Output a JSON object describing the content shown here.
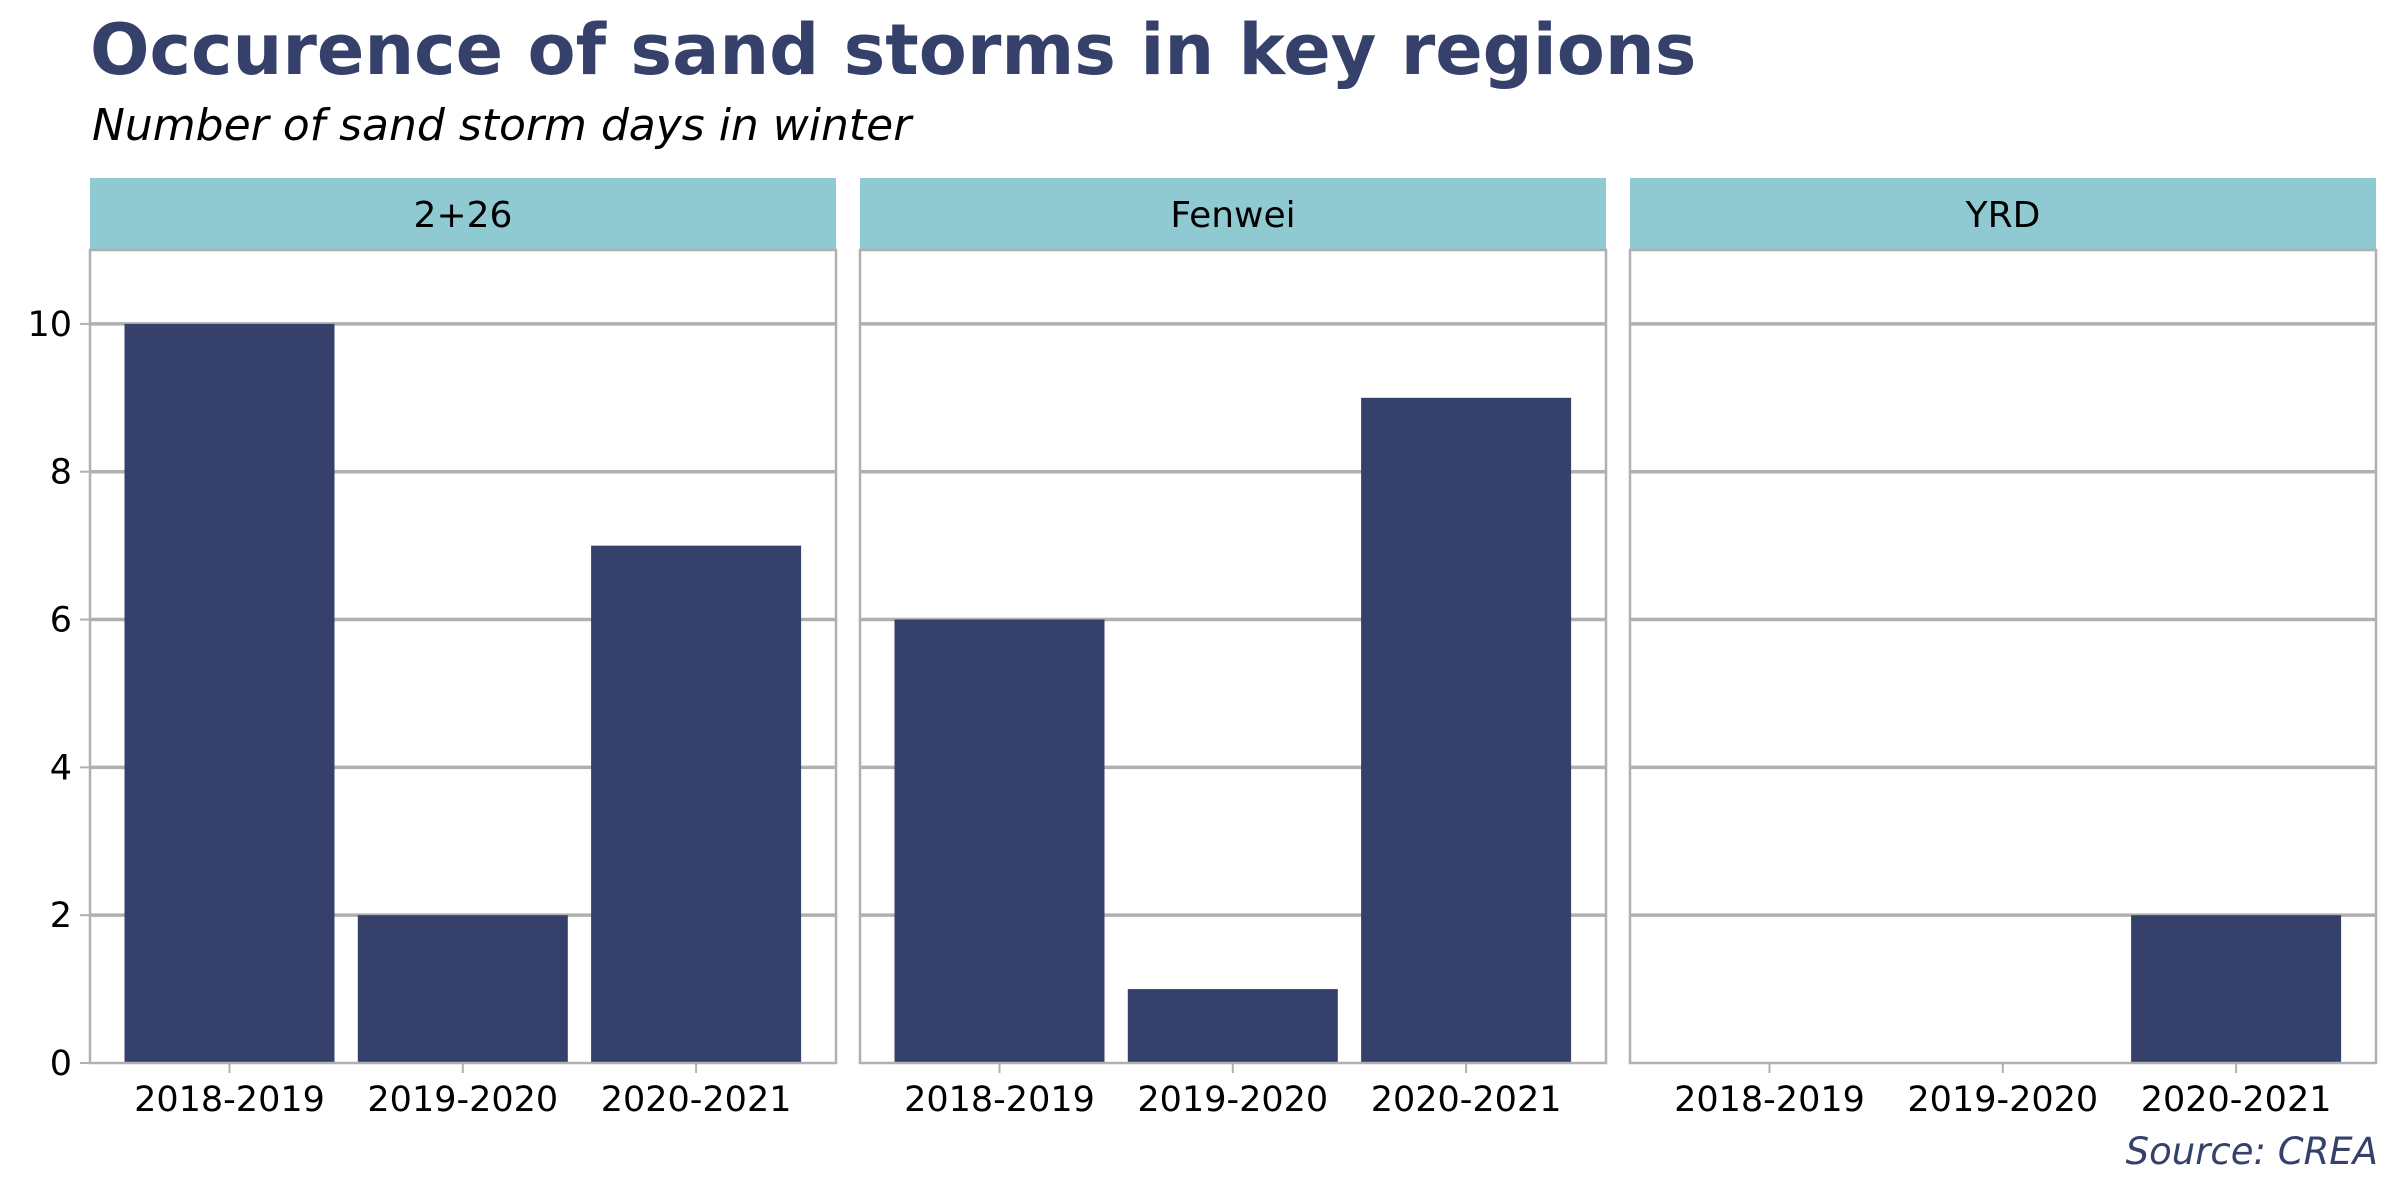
{
  "colors": {
    "title": "#35406b",
    "bar": "#35406b",
    "strip": "#8fcad2",
    "grid": "#b0b0b0",
    "source": "#35406b"
  },
  "source": "Source: CREA",
  "chart_data": {
    "type": "bar",
    "title": "Occurence of sand storms in key regions",
    "subtitle": "Number of sand storm days in winter",
    "xlabel": "",
    "ylabel": "",
    "ylim": [
      0,
      11
    ],
    "yticks": [
      0,
      2,
      4,
      6,
      8,
      10
    ],
    "grid": true,
    "categories": [
      "2018-2019",
      "2019-2020",
      "2020-2021"
    ],
    "facets": [
      {
        "name": "2+26",
        "values": [
          10,
          2,
          7
        ]
      },
      {
        "name": "Fenwei",
        "values": [
          6,
          1,
          9
        ]
      },
      {
        "name": "YRD",
        "values": [
          0,
          0,
          2
        ]
      }
    ]
  }
}
